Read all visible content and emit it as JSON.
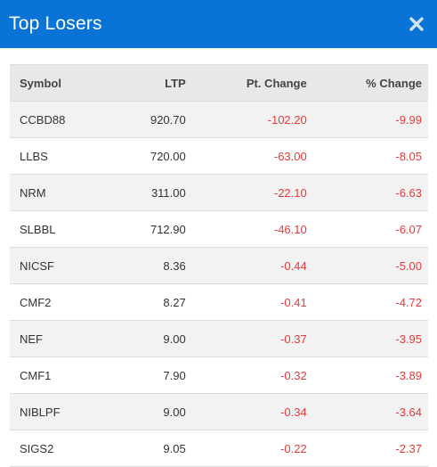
{
  "modal": {
    "title": "Top Losers",
    "close_icon": "close-icon",
    "accent": "#0a74d6",
    "negative_color": "#e43b3b"
  },
  "table": {
    "headers": {
      "symbol": "Symbol",
      "ltp": "LTP",
      "pt_change": "Pt. Change",
      "pct_change": "% Change"
    },
    "rows": [
      {
        "symbol": "CCBD88",
        "ltp": "920.70",
        "pt_change": "-102.20",
        "pct_change": "-9.99"
      },
      {
        "symbol": "LLBS",
        "ltp": "720.00",
        "pt_change": "-63.00",
        "pct_change": "-8.05"
      },
      {
        "symbol": "NRM",
        "ltp": "311.00",
        "pt_change": "-22.10",
        "pct_change": "-6.63"
      },
      {
        "symbol": "SLBBL",
        "ltp": "712.90",
        "pt_change": "-46.10",
        "pct_change": "-6.07"
      },
      {
        "symbol": "NICSF",
        "ltp": "8.36",
        "pt_change": "-0.44",
        "pct_change": "-5.00"
      },
      {
        "symbol": "CMF2",
        "ltp": "8.27",
        "pt_change": "-0.41",
        "pct_change": "-4.72"
      },
      {
        "symbol": "NEF",
        "ltp": "9.00",
        "pt_change": "-0.37",
        "pct_change": "-3.95"
      },
      {
        "symbol": "CMF1",
        "ltp": "7.90",
        "pt_change": "-0.32",
        "pct_change": "-3.89"
      },
      {
        "symbol": "NIBLPF",
        "ltp": "9.00",
        "pt_change": "-0.34",
        "pct_change": "-3.64"
      },
      {
        "symbol": "SIGS2",
        "ltp": "9.05",
        "pt_change": "-0.22",
        "pct_change": "-2.37"
      }
    ]
  }
}
